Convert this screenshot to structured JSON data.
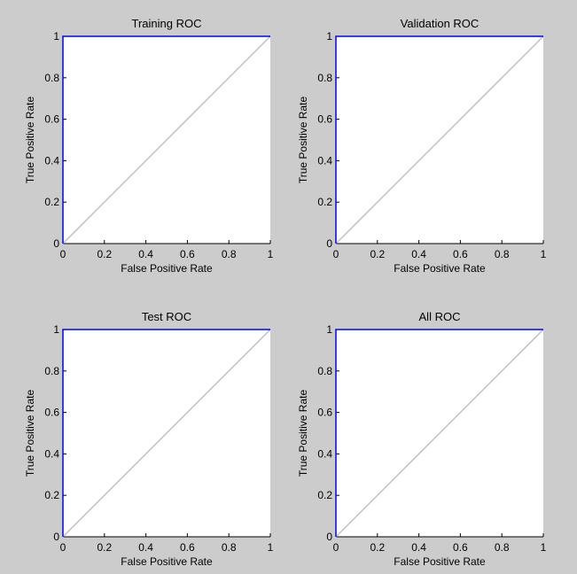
{
  "figure": {
    "background": "#cccccc"
  },
  "chart_data": [
    {
      "type": "line",
      "title": "Training ROC",
      "xlabel": "False Positive Rate",
      "ylabel": "True Positive Rate",
      "xlim": [
        0,
        1
      ],
      "ylim": [
        0,
        1
      ],
      "xticks": [
        "0",
        "0.2",
        "0.4",
        "0.6",
        "0.8",
        "1"
      ],
      "yticks": [
        "0",
        "0.2",
        "0.4",
        "0.6",
        "0.8",
        "1"
      ],
      "grid": false,
      "series": [
        {
          "x": [
            0,
            0,
            1
          ],
          "y": [
            0,
            1,
            1
          ],
          "color": "#0000ff"
        },
        {
          "x": [
            0,
            1
          ],
          "y": [
            0,
            1
          ],
          "color": "#c0c0c0"
        }
      ]
    },
    {
      "type": "line",
      "title": "Validation ROC",
      "xlabel": "False Positive Rate",
      "ylabel": "True Positive Rate",
      "xlim": [
        0,
        1
      ],
      "ylim": [
        0,
        1
      ],
      "xticks": [
        "0",
        "0.2",
        "0.4",
        "0.6",
        "0.8",
        "1"
      ],
      "yticks": [
        "0",
        "0.2",
        "0.4",
        "0.6",
        "0.8",
        "1"
      ],
      "grid": false,
      "series": [
        {
          "x": [
            0,
            0,
            1
          ],
          "y": [
            0,
            1,
            1
          ],
          "color": "#0000ff"
        },
        {
          "x": [
            0,
            1
          ],
          "y": [
            0,
            1
          ],
          "color": "#c0c0c0"
        }
      ]
    },
    {
      "type": "line",
      "title": "Test ROC",
      "xlabel": "False Positive Rate",
      "ylabel": "True Positive Rate",
      "xlim": [
        0,
        1
      ],
      "ylim": [
        0,
        1
      ],
      "xticks": [
        "0",
        "0.2",
        "0.4",
        "0.6",
        "0.8",
        "1"
      ],
      "yticks": [
        "0",
        "0.2",
        "0.4",
        "0.6",
        "0.8",
        "1"
      ],
      "grid": false,
      "series": [
        {
          "x": [
            0,
            0,
            1
          ],
          "y": [
            0,
            1,
            1
          ],
          "color": "#0000ff"
        },
        {
          "x": [
            0,
            1
          ],
          "y": [
            0,
            1
          ],
          "color": "#c0c0c0"
        }
      ]
    },
    {
      "type": "line",
      "title": "All ROC",
      "xlabel": "False Positive Rate",
      "ylabel": "True Positive Rate",
      "xlim": [
        0,
        1
      ],
      "ylim": [
        0,
        1
      ],
      "xticks": [
        "0",
        "0.2",
        "0.4",
        "0.6",
        "0.8",
        "1"
      ],
      "yticks": [
        "0",
        "0.2",
        "0.4",
        "0.6",
        "0.8",
        "1"
      ],
      "grid": false,
      "series": [
        {
          "x": [
            0,
            0,
            1
          ],
          "y": [
            0,
            1,
            1
          ],
          "color": "#0000ff"
        },
        {
          "x": [
            0,
            1
          ],
          "y": [
            0,
            1
          ],
          "color": "#c0c0c0"
        }
      ]
    }
  ]
}
